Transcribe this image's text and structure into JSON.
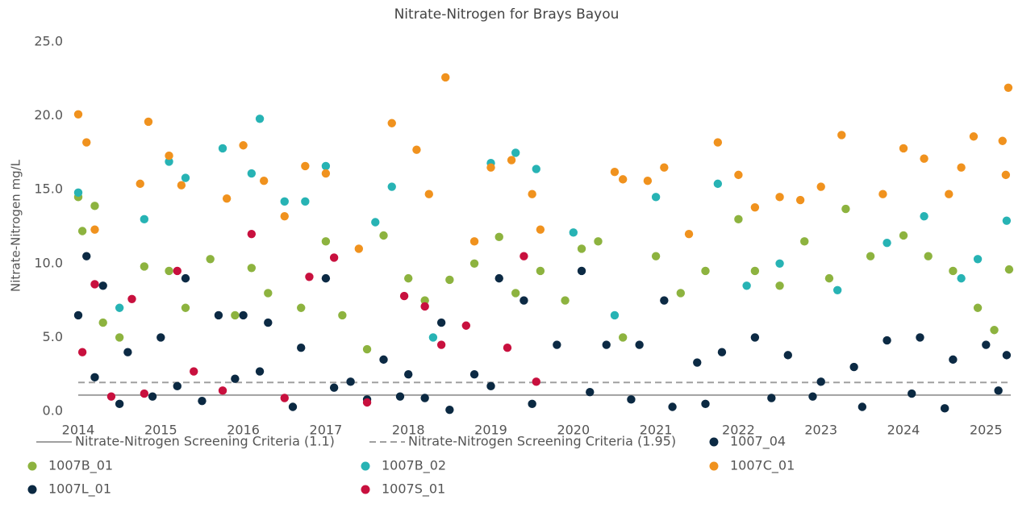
{
  "chart_data": {
    "type": "scatter",
    "title": "Nitrate-Nitrogen for Brays Bayou",
    "y_label": "Nitrate-Nitrogen mg/L",
    "xlim": [
      2014,
      2025.3
    ],
    "xticks": [
      2014,
      2015,
      2016,
      2017,
      2018,
      2019,
      2020,
      2021,
      2022,
      2023,
      2024,
      2025
    ],
    "ylim": [
      0,
      25
    ],
    "yticks": [
      {
        "value": 0,
        "label": "0.0"
      },
      {
        "value": 5,
        "label": "5.0"
      },
      {
        "value": 10,
        "label": "10.0"
      },
      {
        "value": 15,
        "label": "15.0"
      },
      {
        "value": 20,
        "label": "20.0"
      },
      {
        "value": 25,
        "label": "25.0"
      }
    ],
    "reference_lines": [
      {
        "name": "Nitrate-Nitrogen Screening Criteria (1.1)",
        "value": 1.1,
        "color": "#a0a0a0",
        "dashed": false
      },
      {
        "name": "Nitrate-Nitrogen Screening Criteria (1.95)",
        "value": 1.95,
        "color": "#a0a0a0",
        "dashed": true
      }
    ],
    "series": [
      {
        "name": "1007_04",
        "color": "#0c2a44",
        "x": [
          2014.0,
          2014.1,
          2014.3,
          2014.6,
          2015.0,
          2015.3,
          2015.7,
          2016.0,
          2016.3,
          2016.7,
          2017.0,
          2017.3,
          2017.7,
          2018.0,
          2018.4,
          2018.8,
          2019.1,
          2019.4,
          2019.8,
          2020.1,
          2020.4,
          2020.8,
          2021.1,
          2021.5,
          2021.8,
          2022.2,
          2022.6,
          2023.0,
          2023.4,
          2023.8,
          2024.2,
          2024.6,
          2025.0,
          2025.25
        ],
        "values": [
          6.5,
          10.5,
          8.5,
          4.0,
          5.0,
          9.0,
          6.5,
          6.5,
          6.0,
          4.3,
          9.0,
          2.0,
          3.5,
          2.5,
          6.0,
          2.5,
          9.0,
          7.5,
          4.5,
          9.5,
          4.5,
          4.5,
          7.5,
          3.3,
          4.0,
          5.0,
          3.8,
          2.0,
          3.0,
          4.8,
          5.0,
          3.5,
          4.5,
          3.8
        ]
      },
      {
        "name": "1007B_01",
        "color": "#8db33f",
        "x": [
          2014.0,
          2014.05,
          2014.2,
          2014.3,
          2014.5,
          2014.8,
          2015.1,
          2015.3,
          2015.6,
          2015.9,
          2016.1,
          2016.3,
          2016.7,
          2017.0,
          2017.2,
          2017.5,
          2017.7,
          2018.0,
          2018.2,
          2018.5,
          2018.8,
          2019.1,
          2019.3,
          2019.6,
          2019.9,
          2020.1,
          2020.3,
          2020.6,
          2021.0,
          2021.3,
          2021.6,
          2022.0,
          2022.2,
          2022.5,
          2022.8,
          2023.1,
          2023.3,
          2023.6,
          2024.0,
          2024.3,
          2024.6,
          2024.9,
          2025.1,
          2025.28
        ],
        "values": [
          14.5,
          12.2,
          13.9,
          6.0,
          5.0,
          9.8,
          9.5,
          7.0,
          10.3,
          6.5,
          9.7,
          8.0,
          7.0,
          11.5,
          6.5,
          4.2,
          11.9,
          9.0,
          7.5,
          8.9,
          10.0,
          11.8,
          8.0,
          9.5,
          7.5,
          11.0,
          11.5,
          5.0,
          10.5,
          8.0,
          9.5,
          13.0,
          9.5,
          8.5,
          11.5,
          9.0,
          13.7,
          10.5,
          11.9,
          10.5,
          9.5,
          7.0,
          5.5,
          9.6
        ]
      },
      {
        "name": "1007B_02",
        "color": "#27b3b4",
        "x": [
          2014.0,
          2014.5,
          2014.8,
          2015.1,
          2015.3,
          2015.75,
          2016.1,
          2016.2,
          2016.5,
          2016.75,
          2017.0,
          2017.6,
          2017.8,
          2018.3,
          2019.0,
          2019.3,
          2019.55,
          2020.0,
          2020.5,
          2021.0,
          2021.75,
          2022.1,
          2022.5,
          2023.2,
          2023.8,
          2024.25,
          2024.7,
          2024.9,
          2025.25
        ],
        "values": [
          14.8,
          7.0,
          13.0,
          16.9,
          15.8,
          17.8,
          16.1,
          19.8,
          14.2,
          14.2,
          16.6,
          12.8,
          15.2,
          5.0,
          16.8,
          17.5,
          16.4,
          12.1,
          6.5,
          14.5,
          15.4,
          8.5,
          10.0,
          8.2,
          11.4,
          13.2,
          9.0,
          10.3,
          12.9
        ]
      },
      {
        "name": "1007C_01",
        "color": "#f0921e",
        "x": [
          2014.0,
          2014.1,
          2014.2,
          2014.75,
          2014.85,
          2015.1,
          2015.25,
          2015.8,
          2016.0,
          2016.25,
          2016.5,
          2016.75,
          2017.0,
          2017.4,
          2017.8,
          2018.1,
          2018.25,
          2018.45,
          2018.8,
          2019.0,
          2019.25,
          2019.5,
          2019.6,
          2020.5,
          2020.6,
          2020.9,
          2021.1,
          2021.4,
          2021.75,
          2022.0,
          2022.2,
          2022.5,
          2022.75,
          2023.0,
          2023.25,
          2023.75,
          2024.0,
          2024.25,
          2024.55,
          2024.7,
          2024.85,
          2025.2,
          2025.24,
          2025.27
        ],
        "values": [
          20.1,
          18.2,
          12.3,
          15.4,
          19.6,
          17.3,
          15.3,
          14.4,
          18.0,
          15.6,
          13.2,
          16.6,
          16.1,
          11.0,
          19.5,
          17.7,
          14.7,
          22.6,
          11.5,
          16.5,
          17.0,
          14.7,
          12.3,
          16.2,
          15.7,
          15.6,
          16.5,
          12.0,
          18.2,
          16.0,
          13.8,
          14.5,
          14.3,
          15.2,
          18.7,
          14.7,
          17.8,
          17.1,
          14.7,
          16.5,
          18.6,
          18.3,
          16.0,
          21.9
        ]
      },
      {
        "name": "1007L_01",
        "color": "#0b2942",
        "x": [
          2014.2,
          2014.5,
          2014.9,
          2015.2,
          2015.5,
          2015.9,
          2016.2,
          2016.6,
          2017.1,
          2017.5,
          2017.9,
          2018.2,
          2018.5,
          2019.0,
          2019.5,
          2020.2,
          2020.7,
          2021.2,
          2021.6,
          2022.4,
          2022.9,
          2023.5,
          2024.1,
          2024.5,
          2025.15
        ],
        "values": [
          2.3,
          0.5,
          1.0,
          1.7,
          0.7,
          2.2,
          2.7,
          0.3,
          1.6,
          0.8,
          1.0,
          0.9,
          0.1,
          1.7,
          0.5,
          1.3,
          0.8,
          0.3,
          0.5,
          0.9,
          1.0,
          0.3,
          1.2,
          0.2,
          1.4
        ]
      },
      {
        "name": "1007S_01",
        "color": "#c8103e",
        "x": [
          2014.05,
          2014.2,
          2014.4,
          2014.65,
          2014.8,
          2015.2,
          2015.4,
          2015.75,
          2016.1,
          2016.5,
          2016.8,
          2017.1,
          2017.5,
          2017.95,
          2018.2,
          2018.4,
          2018.7,
          2019.2,
          2019.4,
          2019.55
        ],
        "values": [
          4.0,
          8.6,
          1.0,
          7.6,
          1.2,
          9.5,
          2.7,
          1.4,
          12.0,
          0.9,
          9.1,
          10.4,
          0.6,
          7.8,
          7.1,
          4.5,
          5.8,
          4.3,
          10.5,
          2.0
        ]
      }
    ]
  }
}
